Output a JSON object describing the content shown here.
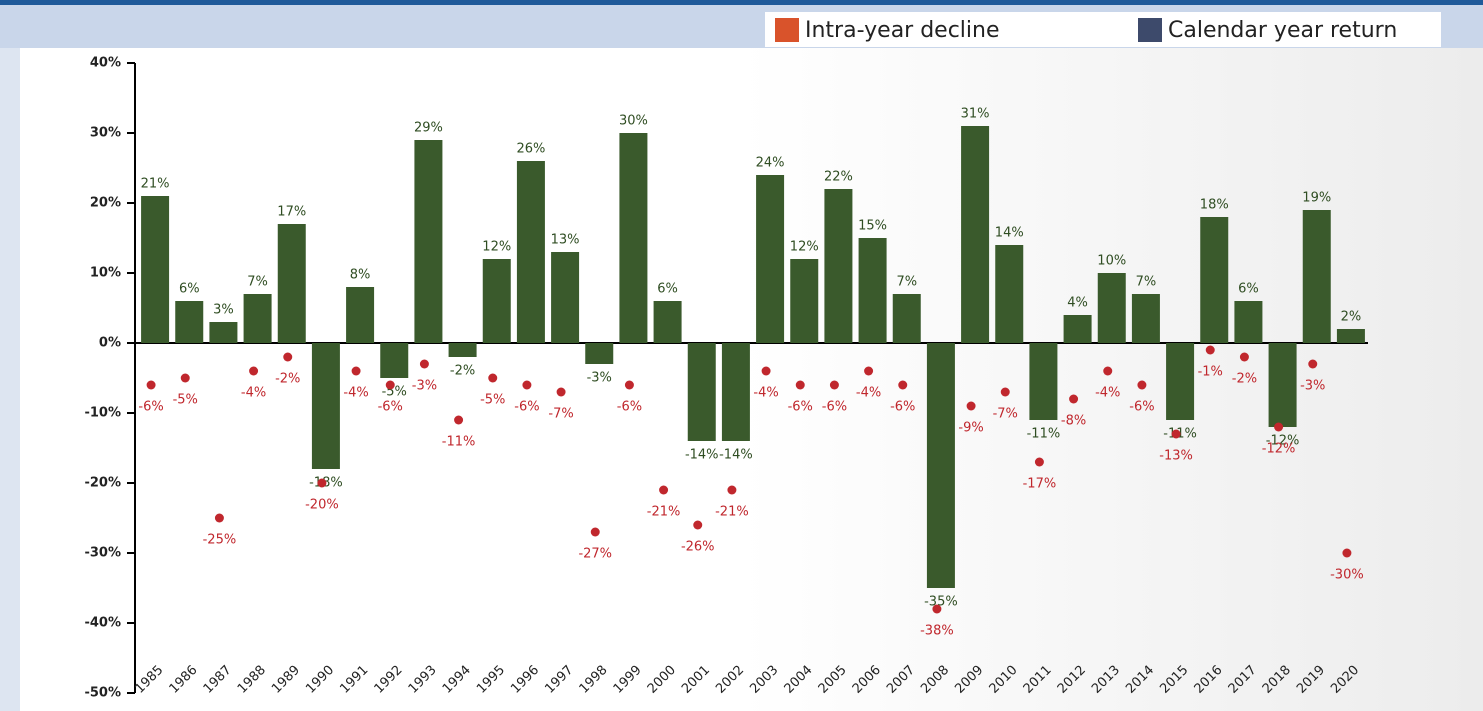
{
  "chart_data": {
    "type": "bar",
    "categories": [
      "1985",
      "1986",
      "1987",
      "1988",
      "1989",
      "1990",
      "1991",
      "1992",
      "1993",
      "1994",
      "1995",
      "1996",
      "1997",
      "1998",
      "1999",
      "2000",
      "2001",
      "2002",
      "2003",
      "2004",
      "2005",
      "2006",
      "2007",
      "2008",
      "2009",
      "2010",
      "2011",
      "2012",
      "2013",
      "2014",
      "2015",
      "2016",
      "2017",
      "2018",
      "2019",
      "2020"
    ],
    "series": [
      {
        "name": "Intra-year decline",
        "type": "scatter",
        "color": "#c0272d",
        "legend_color": "#d9532b",
        "values": [
          -6,
          -5,
          -25,
          -4,
          -2,
          -20,
          -4,
          -6,
          -3,
          -11,
          -5,
          -6,
          -7,
          -27,
          -6,
          -21,
          -26,
          -21,
          -4,
          -6,
          -6,
          -4,
          -6,
          -38,
          -9,
          -7,
          -17,
          -8,
          -4,
          -6,
          -13,
          -1,
          -2,
          -12,
          -3,
          -30
        ],
        "value_labels": [
          "-6%",
          "-5%",
          "-25%",
          "-4%",
          "-2%",
          "-20%",
          "-4%",
          "-6%",
          "-3%",
          "-11%",
          "-5%",
          "-6%",
          "-7%",
          "-27%",
          "-6%",
          "-21%",
          "-26%",
          "-21%",
          "-4%",
          "-6%",
          "-6%",
          "-4%",
          "-6%",
          "-38%",
          "-9%",
          "-7%",
          "-17%",
          "-8%",
          "-4%",
          "-6%",
          "-13%",
          "-1%",
          "-2%",
          "-12%",
          "-3%",
          "-30%"
        ]
      },
      {
        "name": "Calendar year return",
        "type": "bar",
        "color": "#3a5a2c",
        "legend_color": "#3d4a6b",
        "values": [
          21,
          6,
          3,
          7,
          17,
          -18,
          8,
          -5,
          29,
          -2,
          12,
          26,
          13,
          -3,
          30,
          6,
          -14,
          -14,
          24,
          12,
          22,
          15,
          7,
          -35,
          31,
          14,
          -11,
          4,
          10,
          7,
          -11,
          18,
          6,
          -12,
          19,
          2
        ],
        "value_labels": [
          "21%",
          "6%",
          "3%",
          "7%",
          "17%",
          "-18%",
          "8%",
          "-5%",
          "29%",
          "-2%",
          "12%",
          "26%",
          "13%",
          "-3%",
          "30%",
          "6%",
          "-14%",
          "-14%",
          "24%",
          "12%",
          "22%",
          "15%",
          "7%",
          "-35%",
          "31%",
          "14%",
          "-11%",
          "4%",
          "10%",
          "7%",
          "-11%",
          "18%",
          "6%",
          "-12%",
          "19%",
          "2%"
        ]
      }
    ],
    "ylim": [
      -50,
      40
    ],
    "yticks": [
      {
        "value": 40,
        "label": "40%"
      },
      {
        "value": 30,
        "label": "30%"
      },
      {
        "value": 20,
        "label": "20%"
      },
      {
        "value": 10,
        "label": "10%"
      },
      {
        "value": 0,
        "label": "0%"
      },
      {
        "value": -10,
        "label": "-10%"
      },
      {
        "value": -20,
        "label": "-20%"
      },
      {
        "value": -30,
        "label": "-30%"
      },
      {
        "value": -40,
        "label": "-40%"
      },
      {
        "value": -50,
        "label": "-50%"
      }
    ]
  }
}
